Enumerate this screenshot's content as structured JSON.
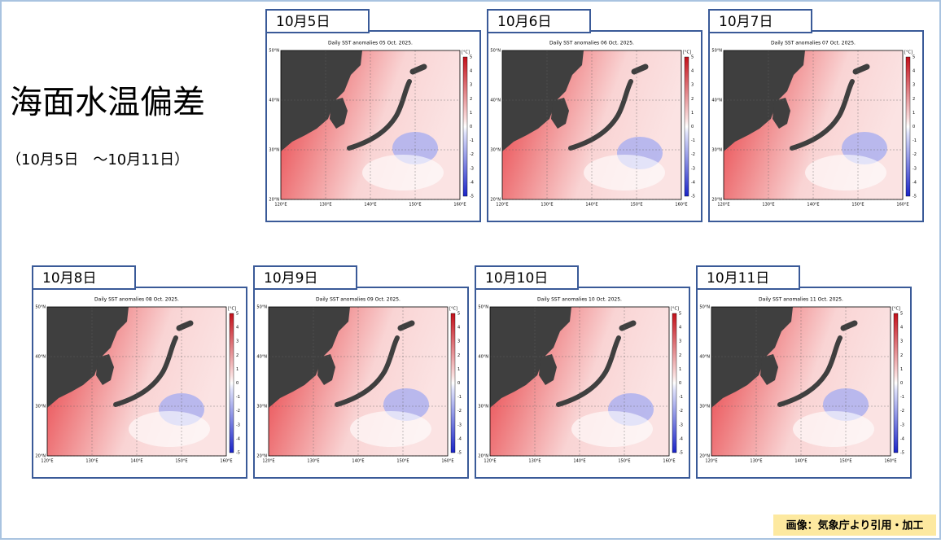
{
  "header": {
    "title": "海面水温偏差",
    "subtitle": "（10月5日　～10月11日）"
  },
  "maps": [
    {
      "date": "10月5日",
      "title": "Daily SST anomalies 05 Oct. 2025."
    },
    {
      "date": "10月6日",
      "title": "Daily SST anomalies 06 Oct. 2025."
    },
    {
      "date": "10月7日",
      "title": "Daily SST anomalies 07 Oct. 2025."
    },
    {
      "date": "10月8日",
      "title": "Daily SST anomalies 08 Oct. 2025."
    },
    {
      "date": "10月9日",
      "title": "Daily SST anomalies 09 Oct. 2025."
    },
    {
      "date": "10月10日",
      "title": "Daily SST anomalies 10 Oct. 2025."
    },
    {
      "date": "10月11日",
      "title": "Daily SST anomalies 11 Oct. 2025."
    }
  ],
  "lat_labels": [
    "50°N",
    "40°N",
    "30°N",
    "20°N"
  ],
  "lon_labels": [
    "120°E",
    "130°E",
    "140°E",
    "150°E",
    "160°E"
  ],
  "colorbar_unit": "[°C]",
  "colorbar_ticks": [
    5,
    4,
    3,
    2,
    1,
    0,
    -1,
    -2,
    -3,
    -4,
    -5
  ],
  "credit": "画像：気象庁より引用・加工"
}
